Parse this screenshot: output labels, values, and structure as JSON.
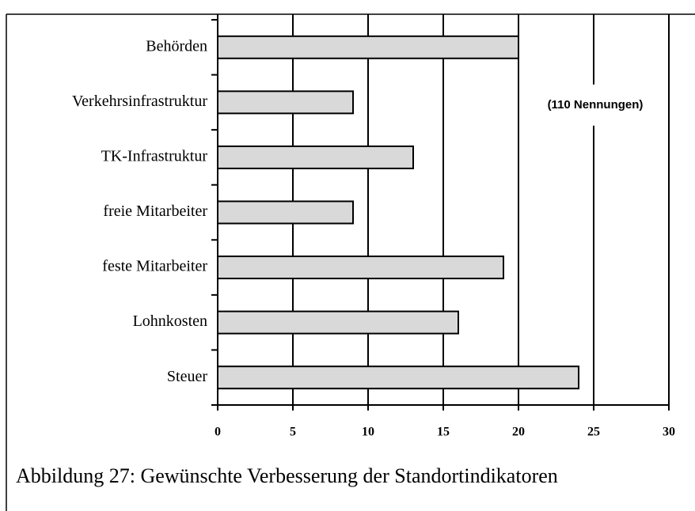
{
  "chart_data": {
    "type": "bar",
    "orientation": "horizontal",
    "categories": [
      "Behörden",
      "Verkehrsinfrastruktur",
      "TK-Infrastruktur",
      "freie Mitarbeiter",
      "feste Mitarbeiter",
      "Lohnkosten",
      "Steuer"
    ],
    "values": [
      20,
      9,
      13,
      9,
      19,
      16,
      24
    ],
    "color": "#d9d9d9",
    "xlim": [
      0,
      30
    ],
    "xticks": [
      0,
      5,
      10,
      15,
      20,
      25,
      30
    ],
    "grid": true,
    "annotation": "(110 Nennungen)",
    "caption": "Abbildung 27: Gewünschte Verbesserung der Standortindikatoren"
  }
}
